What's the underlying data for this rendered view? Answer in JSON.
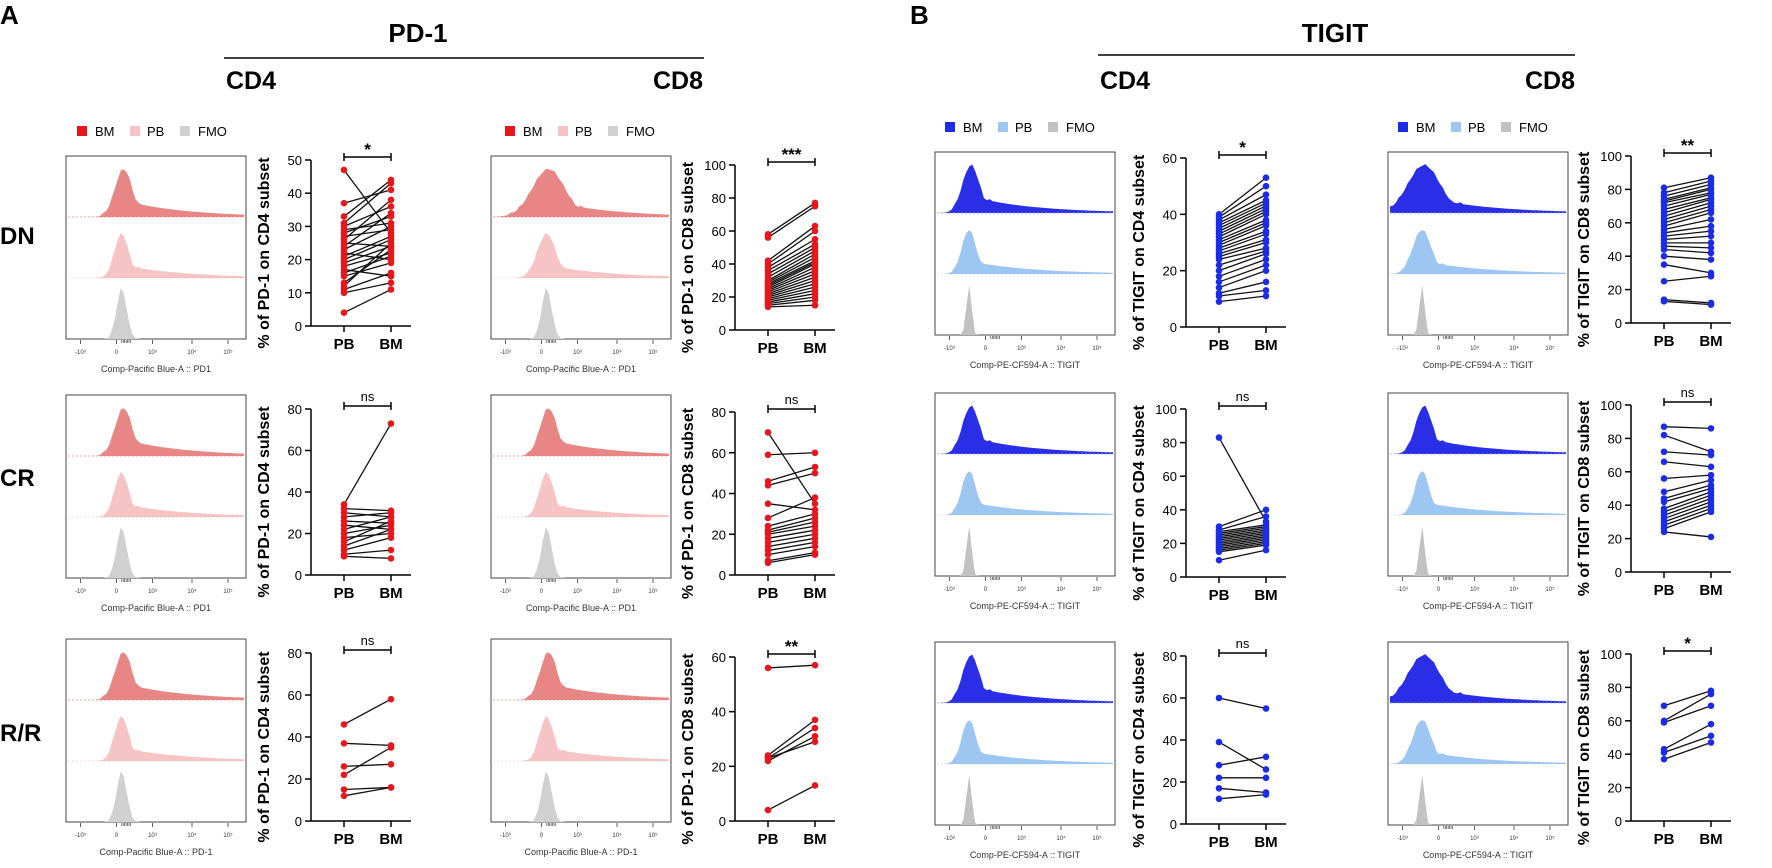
{
  "panels": [
    {
      "label": "A",
      "marker": "PD-1",
      "left": "CD4",
      "right": "CD8"
    },
    {
      "label": "B",
      "marker": "TIGIT",
      "left": "CD4",
      "right": "CD8"
    }
  ],
  "row_labels": [
    "DN",
    "CR",
    "R/R"
  ],
  "legend": [
    "BM",
    "PB",
    "FMO"
  ],
  "colors": {
    "pd1_bm": "#e88585",
    "pd1_pb": "#f6c4c4",
    "fmo": "#d0d0d0",
    "tigit_bm": "#2a2ee6",
    "tigit_pb": "#9ec6f2",
    "fmo_dark": "#c2c2c2",
    "pd1_dot": "#e8161b",
    "tigit_dot": "#1a2ce6",
    "pd1_ref": "#f08080",
    "tigit_ref": "#9aa8f0"
  },
  "flow_axis_ticks": [
    "-10³",
    "0",
    "10³",
    "10⁴",
    "10⁵"
  ],
  "flow_xlabels": {
    "pd1_row1": "Comp-Pacific Blue-A :: PD1",
    "pd1_row3": "Comp-Pacific Blue-A :: PD-1",
    "tigit": "Comp-PE-CF594-A :: TIGIT"
  },
  "chart_data": [
    {
      "type": "paired-dot",
      "id": "pd1-cd4-dn",
      "title": "DN",
      "ylabel": "% of PD-1 on CD4 subset",
      "categories": [
        "PB",
        "BM"
      ],
      "ylim": [
        0,
        50
      ],
      "yticks": [
        0,
        10,
        20,
        30,
        40,
        50
      ],
      "significance": "*",
      "pairs": [
        [
          47,
          28
        ],
        [
          37,
          41
        ],
        [
          33,
          44
        ],
        [
          31,
          43
        ],
        [
          30,
          36
        ],
        [
          29,
          31
        ],
        [
          28,
          33
        ],
        [
          27,
          29
        ],
        [
          26,
          38
        ],
        [
          25,
          24
        ],
        [
          24,
          34
        ],
        [
          23,
          30
        ],
        [
          22,
          20
        ],
        [
          21,
          27
        ],
        [
          20,
          26
        ],
        [
          19,
          24
        ],
        [
          18,
          22
        ],
        [
          17,
          15
        ],
        [
          16,
          21
        ],
        [
          15,
          19
        ],
        [
          13,
          23
        ],
        [
          12,
          25
        ],
        [
          11,
          16
        ],
        [
          10,
          13
        ],
        [
          4,
          11
        ]
      ]
    },
    {
      "type": "paired-dot",
      "id": "pd1-cd8-dn",
      "title": "DN",
      "ylabel": "% of PD-1 on CD8 subset",
      "categories": [
        "PB",
        "BM"
      ],
      "ylim": [
        0,
        100
      ],
      "yticks": [
        0,
        20,
        40,
        60,
        80,
        100
      ],
      "significance": "***",
      "pairs": [
        [
          58,
          77
        ],
        [
          56,
          75
        ],
        [
          42,
          63
        ],
        [
          40,
          60
        ],
        [
          38,
          55
        ],
        [
          36,
          52
        ],
        [
          34,
          50
        ],
        [
          32,
          48
        ],
        [
          30,
          46
        ],
        [
          29,
          44
        ],
        [
          28,
          42
        ],
        [
          27,
          41
        ],
        [
          26,
          40
        ],
        [
          25,
          38
        ],
        [
          24,
          36
        ],
        [
          23,
          34
        ],
        [
          22,
          32
        ],
        [
          21,
          30
        ],
        [
          20,
          28
        ],
        [
          19,
          26
        ],
        [
          18,
          24
        ],
        [
          17,
          22
        ],
        [
          16,
          20
        ],
        [
          15,
          18
        ],
        [
          14,
          15
        ]
      ]
    },
    {
      "type": "paired-dot",
      "id": "tigit-cd4-dn",
      "title": "DN",
      "ylabel": "% of TIGIT on CD4 subset",
      "categories": [
        "PB",
        "BM"
      ],
      "ylim": [
        0,
        60
      ],
      "yticks": [
        0,
        20,
        40,
        60
      ],
      "significance": "*",
      "pairs": [
        [
          40,
          53
        ],
        [
          39,
          50
        ],
        [
          38,
          47
        ],
        [
          37,
          45
        ],
        [
          36,
          44
        ],
        [
          35,
          43
        ],
        [
          34,
          42
        ],
        [
          33,
          41
        ],
        [
          32,
          40
        ],
        [
          31,
          38
        ],
        [
          30,
          37
        ],
        [
          29,
          36
        ],
        [
          28,
          34
        ],
        [
          27,
          33
        ],
        [
          26,
          31
        ],
        [
          25,
          30
        ],
        [
          24,
          28
        ],
        [
          22,
          27
        ],
        [
          20,
          26
        ],
        [
          18,
          24
        ],
        [
          16,
          22
        ],
        [
          14,
          20
        ],
        [
          12,
          16
        ],
        [
          11,
          13
        ],
        [
          9,
          11
        ]
      ]
    },
    {
      "type": "paired-dot",
      "id": "tigit-cd8-dn",
      "title": "DN",
      "ylabel": "% of TIGIT on CD8 subset",
      "categories": [
        "PB",
        "BM"
      ],
      "ylim": [
        0,
        100
      ],
      "yticks": [
        0,
        20,
        40,
        60,
        80,
        100
      ],
      "significance": "**",
      "pairs": [
        [
          81,
          87
        ],
        [
          78,
          85
        ],
        [
          76,
          83
        ],
        [
          74,
          81
        ],
        [
          73,
          80
        ],
        [
          72,
          78
        ],
        [
          70,
          77
        ],
        [
          68,
          75
        ],
        [
          66,
          74
        ],
        [
          64,
          72
        ],
        [
          62,
          70
        ],
        [
          60,
          68
        ],
        [
          58,
          66
        ],
        [
          56,
          62
        ],
        [
          54,
          58
        ],
        [
          52,
          55
        ],
        [
          50,
          52
        ],
        [
          48,
          48
        ],
        [
          46,
          45
        ],
        [
          44,
          42
        ],
        [
          40,
          38
        ],
        [
          35,
          30
        ],
        [
          25,
          28
        ],
        [
          14,
          12
        ],
        [
          13,
          11
        ]
      ]
    },
    {
      "type": "paired-dot",
      "id": "pd1-cd4-cr",
      "title": "CR",
      "ylabel": "% of PD-1 on CD4 subset",
      "categories": [
        "PB",
        "BM"
      ],
      "ylim": [
        0,
        80
      ],
      "yticks": [
        0,
        20,
        40,
        60,
        80
      ],
      "significance": "ns",
      "pairs": [
        [
          34,
          73
        ],
        [
          32,
          31
        ],
        [
          30,
          28
        ],
        [
          28,
          30
        ],
        [
          26,
          25
        ],
        [
          24,
          22
        ],
        [
          22,
          28
        ],
        [
          20,
          24
        ],
        [
          18,
          20
        ],
        [
          16,
          26
        ],
        [
          14,
          22
        ],
        [
          12,
          18
        ],
        [
          10,
          12
        ],
        [
          9,
          8
        ]
      ]
    },
    {
      "type": "paired-dot",
      "id": "pd1-cd8-cr",
      "title": "CR",
      "ylabel": "% of PD-1 on CD8 subset",
      "categories": [
        "PB",
        "BM"
      ],
      "ylim": [
        0,
        80
      ],
      "yticks": [
        0,
        20,
        40,
        60,
        80
      ],
      "significance": "ns",
      "pairs": [
        [
          70,
          35
        ],
        [
          59,
          60
        ],
        [
          46,
          53
        ],
        [
          44,
          50
        ],
        [
          35,
          32
        ],
        [
          28,
          38
        ],
        [
          24,
          30
        ],
        [
          22,
          28
        ],
        [
          21,
          26
        ],
        [
          20,
          24
        ],
        [
          18,
          22
        ],
        [
          16,
          20
        ],
        [
          14,
          18
        ],
        [
          12,
          16
        ],
        [
          10,
          14
        ],
        [
          7,
          11
        ],
        [
          6,
          10
        ]
      ]
    },
    {
      "type": "paired-dot",
      "id": "tigit-cd4-cr",
      "title": "CR",
      "ylabel": "% of TIGIT on CD4 subset",
      "categories": [
        "PB",
        "BM"
      ],
      "ylim": [
        0,
        100
      ],
      "yticks": [
        0,
        20,
        40,
        60,
        80,
        100
      ],
      "significance": "ns",
      "pairs": [
        [
          83,
          33
        ],
        [
          30,
          40
        ],
        [
          28,
          36
        ],
        [
          27,
          31
        ],
        [
          26,
          30
        ],
        [
          25,
          29
        ],
        [
          24,
          28
        ],
        [
          23,
          27
        ],
        [
          22,
          26
        ],
        [
          21,
          25
        ],
        [
          20,
          24
        ],
        [
          19,
          23
        ],
        [
          18,
          22
        ],
        [
          17,
          21
        ],
        [
          16,
          20
        ],
        [
          15,
          19
        ],
        [
          10,
          16
        ]
      ]
    },
    {
      "type": "paired-dot",
      "id": "tigit-cd8-cr",
      "title": "CR",
      "ylabel": "% of TIGIT on CD8 subset",
      "categories": [
        "PB",
        "BM"
      ],
      "ylim": [
        0,
        100
      ],
      "yticks": [
        0,
        20,
        40,
        60,
        80,
        100
      ],
      "significance": "ns",
      "pairs": [
        [
          87,
          86
        ],
        [
          82,
          72
        ],
        [
          72,
          70
        ],
        [
          66,
          63
        ],
        [
          56,
          58
        ],
        [
          48,
          55
        ],
        [
          44,
          52
        ],
        [
          42,
          50
        ],
        [
          38,
          48
        ],
        [
          36,
          46
        ],
        [
          34,
          44
        ],
        [
          32,
          42
        ],
        [
          30,
          40
        ],
        [
          28,
          38
        ],
        [
          26,
          36
        ],
        [
          24,
          21
        ]
      ]
    },
    {
      "type": "paired-dot",
      "id": "pd1-cd4-rr",
      "title": "R/R",
      "ylabel": "% of PD-1 on CD4 subset",
      "categories": [
        "PB",
        "BM"
      ],
      "ylim": [
        0,
        80
      ],
      "yticks": [
        0,
        20,
        40,
        60,
        80
      ],
      "significance": "ns",
      "pairs": [
        [
          46,
          58
        ],
        [
          37,
          36
        ],
        [
          26,
          27
        ],
        [
          22,
          35
        ],
        [
          15,
          16
        ],
        [
          12,
          16
        ]
      ]
    },
    {
      "type": "paired-dot",
      "id": "pd1-cd8-rr",
      "title": "R/R",
      "ylabel": "% of PD-1 on CD8 subset",
      "categories": [
        "PB",
        "BM"
      ],
      "ylim": [
        0,
        60
      ],
      "yticks": [
        0,
        20,
        40,
        60
      ],
      "significance": "**",
      "pairs": [
        [
          56,
          57
        ],
        [
          24,
          37
        ],
        [
          23,
          29
        ],
        [
          23,
          34
        ],
        [
          22,
          31
        ],
        [
          4,
          13
        ]
      ]
    },
    {
      "type": "paired-dot",
      "id": "tigit-cd4-rr",
      "title": "R/R",
      "ylabel": "% of TIGIT on CD4 subset",
      "categories": [
        "PB",
        "BM"
      ],
      "ylim": [
        0,
        80
      ],
      "yticks": [
        0,
        20,
        40,
        60,
        80
      ],
      "significance": "ns",
      "pairs": [
        [
          60,
          55
        ],
        [
          39,
          26
        ],
        [
          28,
          32
        ],
        [
          22,
          22
        ],
        [
          17,
          15
        ],
        [
          12,
          14
        ]
      ]
    },
    {
      "type": "paired-dot",
      "id": "tigit-cd8-rr",
      "title": "R/R",
      "ylabel": "% of TIGIT on CD8 subset",
      "categories": [
        "PB",
        "BM"
      ],
      "ylim": [
        0,
        100
      ],
      "yticks": [
        0,
        20,
        40,
        60,
        80,
        100
      ],
      "significance": "*",
      "pairs": [
        [
          69,
          78
        ],
        [
          60,
          76
        ],
        [
          59,
          69
        ],
        [
          43,
          58
        ],
        [
          41,
          51
        ],
        [
          37,
          47
        ]
      ]
    }
  ]
}
